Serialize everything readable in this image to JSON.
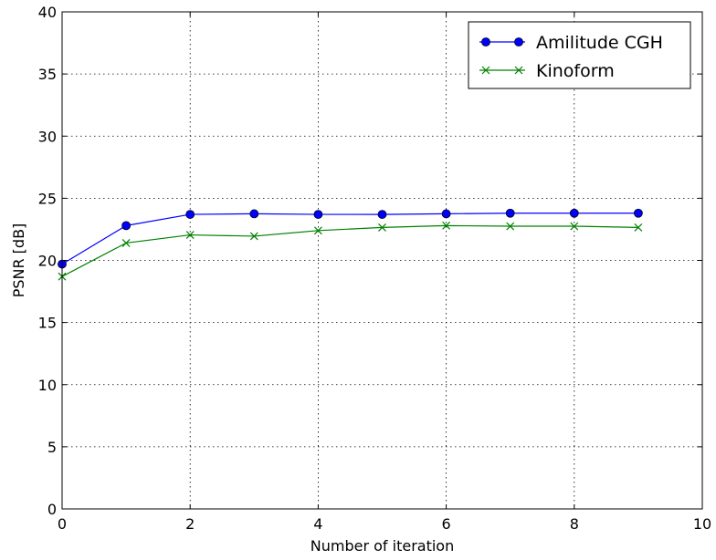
{
  "chart_data": {
    "type": "line",
    "title": "",
    "xlabel": "Number of iteration",
    "ylabel": "PSNR [dB]",
    "xlim": [
      0,
      10
    ],
    "ylim": [
      0,
      40
    ],
    "xticks": [
      0,
      2,
      4,
      6,
      8,
      10
    ],
    "yticks": [
      0,
      5,
      10,
      15,
      20,
      25,
      30,
      35,
      40
    ],
    "grid": true,
    "legend_position": "top-right",
    "x": [
      0,
      1,
      2,
      3,
      4,
      5,
      6,
      7,
      8,
      9
    ],
    "series": [
      {
        "name": "Amilitude CGH",
        "color": "#0000ff",
        "marker": "circle",
        "values": [
          19.7,
          22.8,
          23.7,
          23.75,
          23.7,
          23.7,
          23.75,
          23.8,
          23.8,
          23.8
        ]
      },
      {
        "name": "Kinoform",
        "color": "#008000",
        "marker": "x",
        "values": [
          18.7,
          21.4,
          22.05,
          21.95,
          22.4,
          22.65,
          22.8,
          22.75,
          22.75,
          22.65
        ]
      }
    ]
  }
}
